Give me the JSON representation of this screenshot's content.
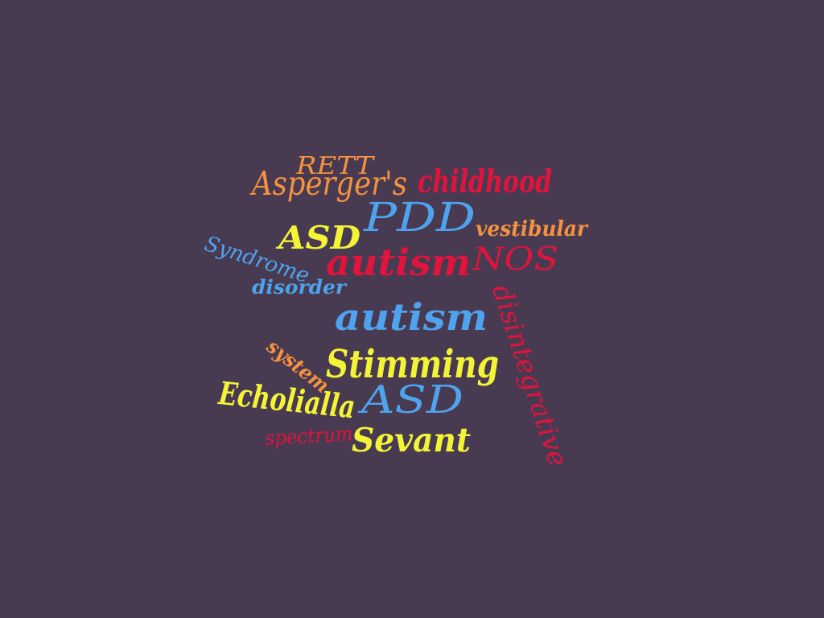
{
  "palette": {
    "background": "#483a51",
    "orange": "#f5923e",
    "crimson": "#e0143c",
    "blue": "#4fa3ee",
    "yellow": "#f4f437"
  },
  "words": [
    {
      "id": "rett",
      "text": "RETT",
      "color": "orange"
    },
    {
      "id": "aspergers",
      "text": "Asperger's",
      "color": "orange"
    },
    {
      "id": "childhood",
      "text": "childhood",
      "color": "crimson"
    },
    {
      "id": "pdd",
      "text": "PDD",
      "color": "blue"
    },
    {
      "id": "vestibular",
      "text": "vestibular",
      "color": "orange"
    },
    {
      "id": "syndrome",
      "text": "Syndrome",
      "color": "blue"
    },
    {
      "id": "asd-top",
      "text": "ASD",
      "color": "yellow"
    },
    {
      "id": "autism-red",
      "text": "autism",
      "color": "crimson"
    },
    {
      "id": "nos",
      "text": "NOS",
      "color": "crimson"
    },
    {
      "id": "disorder",
      "text": "disorder",
      "color": "blue"
    },
    {
      "id": "disintegrative",
      "text": "disintegrative",
      "color": "crimson"
    },
    {
      "id": "autism-blue",
      "text": "autism",
      "color": "blue"
    },
    {
      "id": "system",
      "text": "system",
      "color": "orange"
    },
    {
      "id": "stimming",
      "text": "Stimming",
      "color": "yellow"
    },
    {
      "id": "echolialla",
      "text": "Echolialla",
      "color": "yellow"
    },
    {
      "id": "asd-bottom",
      "text": "ASD",
      "color": "blue"
    },
    {
      "id": "spectrum",
      "text": "spectrum",
      "color": "crimson"
    },
    {
      "id": "sevant",
      "text": "Sevant",
      "color": "yellow"
    }
  ]
}
